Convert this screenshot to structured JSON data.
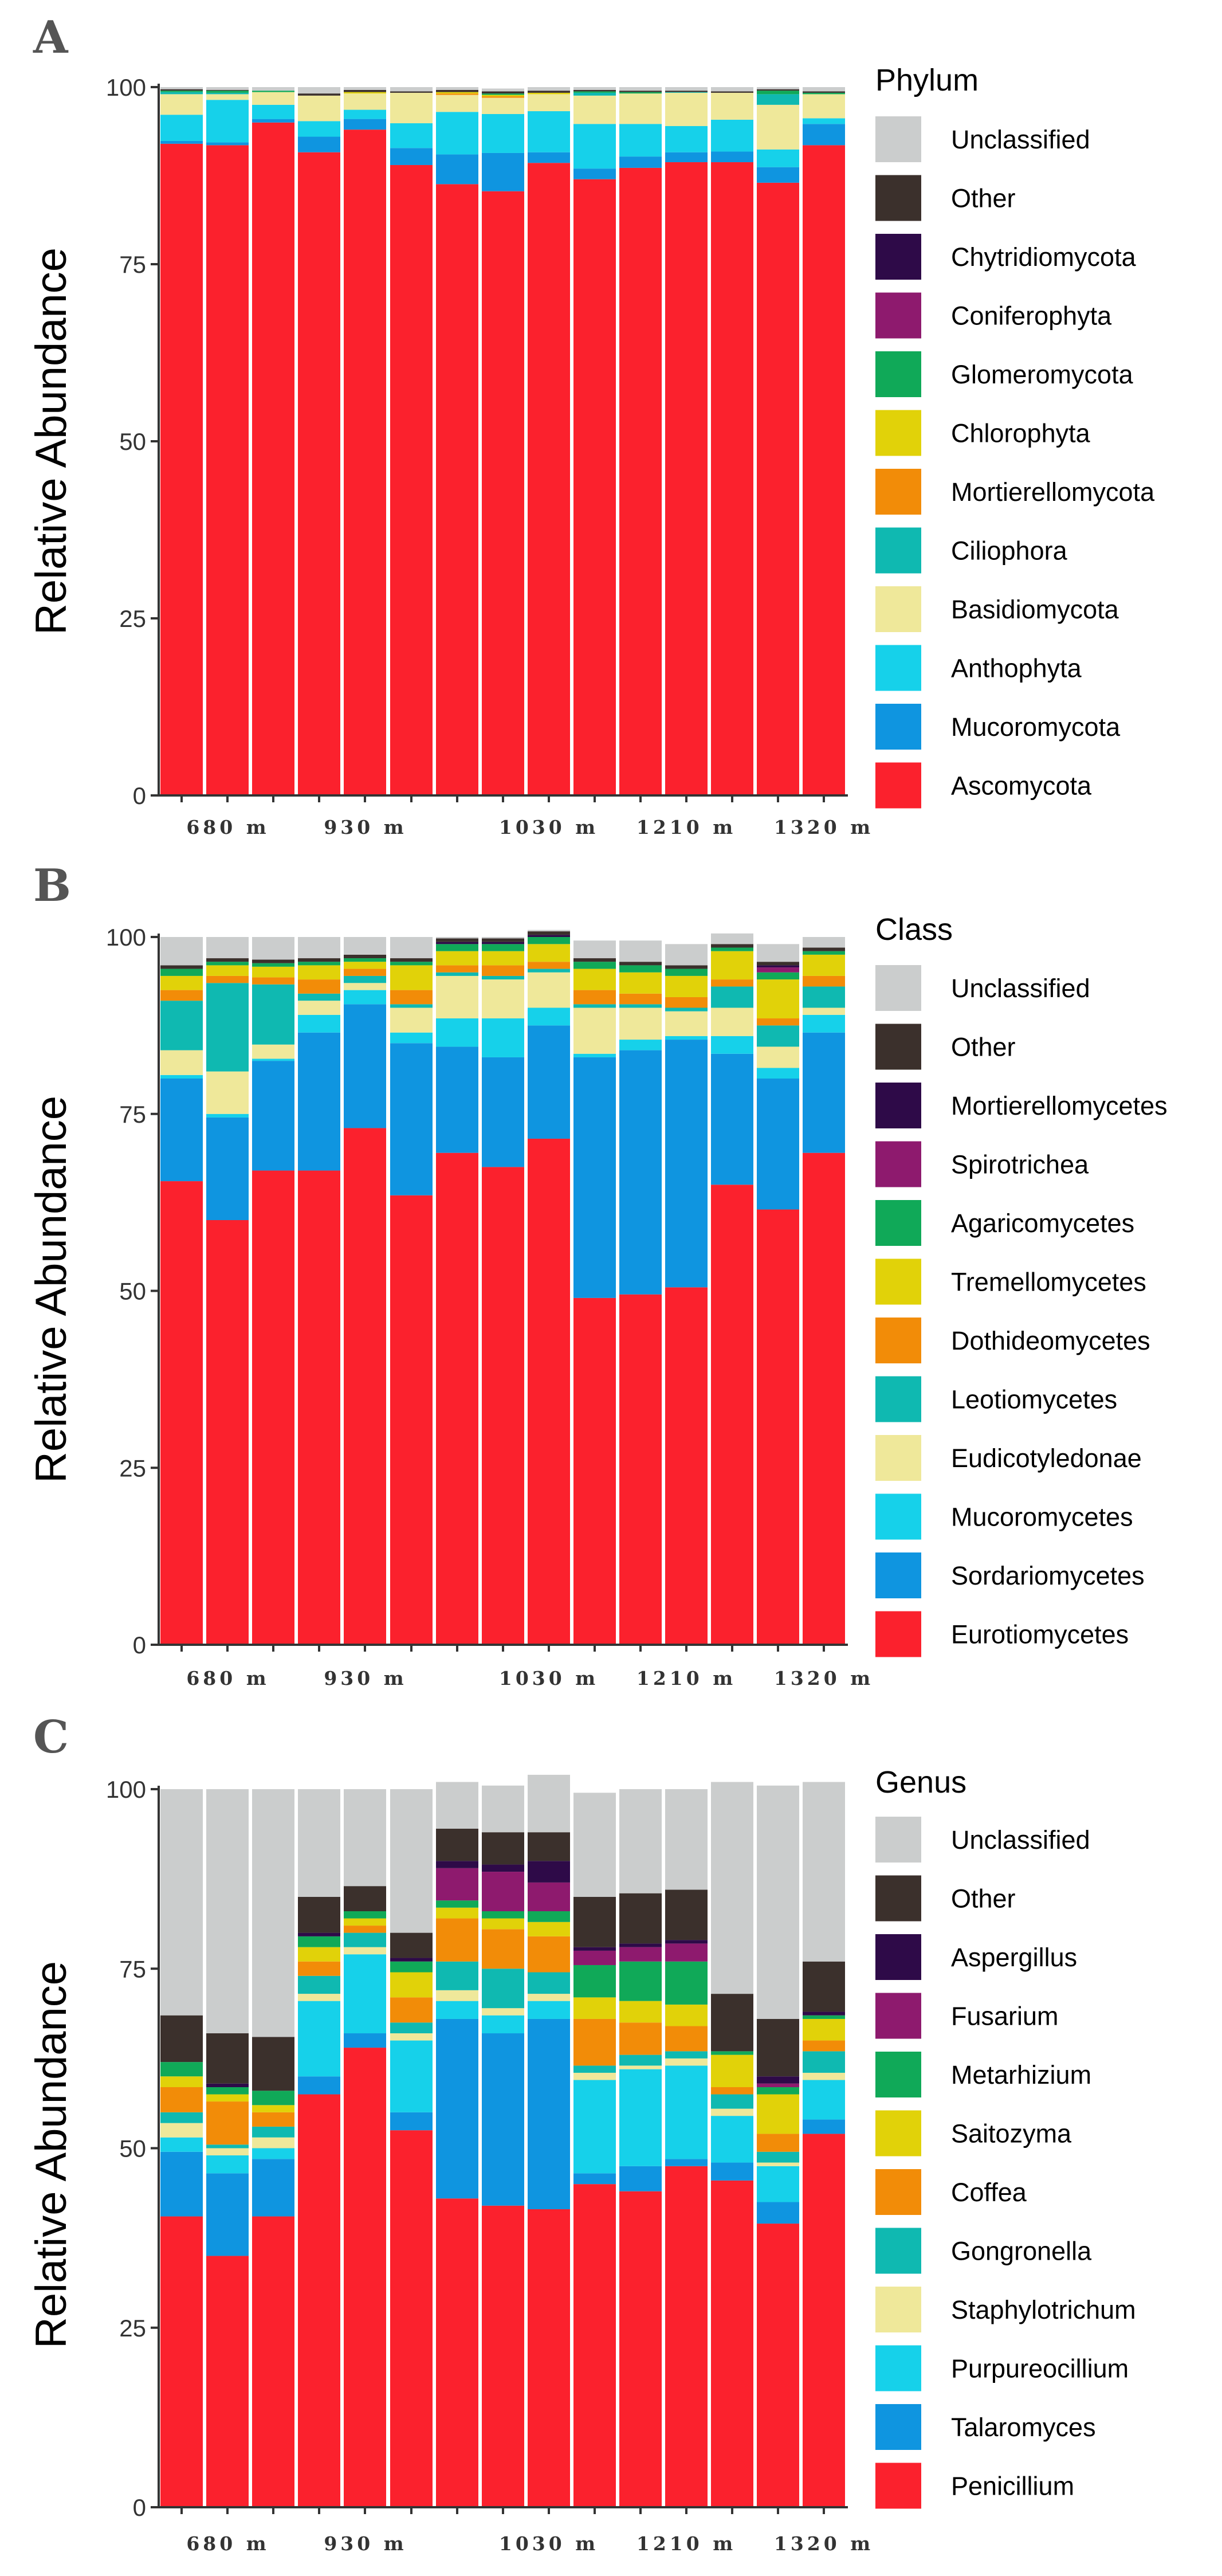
{
  "figure": {
    "colors": {
      "Unclassified": "#cbcdcd",
      "Other": "#3b302c",
      "dark_purple": "#2e0a48",
      "magenta": "#8e1a6e",
      "green": "#10a958",
      "yellow": "#e1d209",
      "orange": "#f28c08",
      "teal": "#0fb9b1",
      "pale_yellow": "#efe89a",
      "light_blue": "#16d1ea",
      "blue": "#0f95e0",
      "red": "#fb212d"
    }
  },
  "chart_data": [
    {
      "panel": "A",
      "type": "bar",
      "stacked": true,
      "ylabel": "Relative Abundance",
      "ylim": [
        0,
        100
      ],
      "yticks": [
        "0",
        "25",
        "50",
        "75",
        "100"
      ],
      "groups": [
        "680 m",
        "930 m",
        "1030 m",
        "1210 m",
        "1320 m"
      ],
      "legend_title": "Phylum",
      "legend_order": [
        "Unclassified",
        "Other",
        "Chytridiomycota",
        "Coniferophyta",
        "Glomeromycota",
        "Chlorophyta",
        "Mortierellomycota",
        "Ciliophora",
        "Basidiomycota",
        "Anthophyta",
        "Mucoromycota",
        "Ascomycota"
      ],
      "series": [
        {
          "name": "Ascomycota",
          "color": "#fb212d",
          "values": [
            92,
            91.8,
            95,
            90.8,
            94,
            89,
            86.3,
            85.3,
            89.3,
            87,
            88.6,
            89.4,
            89.4,
            86.5,
            91.8
          ]
        },
        {
          "name": "Mucoromycota",
          "color": "#0f95e0",
          "values": [
            0.4,
            0.4,
            0.5,
            2.2,
            1.5,
            2.4,
            4.2,
            5.4,
            1.5,
            1.5,
            1.6,
            1.4,
            1.5,
            2.2,
            3.0
          ]
        },
        {
          "name": "Anthophyta",
          "color": "#16d1ea",
          "values": [
            3.7,
            6.0,
            2.0,
            2.2,
            1.3,
            3.5,
            6.0,
            5.5,
            5.8,
            6.3,
            4.6,
            3.7,
            4.5,
            2.5,
            0.8
          ]
        },
        {
          "name": "Basidiomycota",
          "color": "#efe89a",
          "values": [
            2.9,
            0.8,
            1.8,
            3.6,
            2.3,
            4.3,
            2.4,
            2.3,
            2.4,
            4.0,
            4.3,
            4.7,
            3.8,
            6.3,
            3.4
          ]
        },
        {
          "name": "Ciliophora",
          "color": "#0fb9b1",
          "values": [
            0.3,
            0.2,
            0,
            0,
            0,
            0,
            0,
            0,
            0,
            0.4,
            0,
            0.1,
            0,
            1.5,
            0
          ]
        },
        {
          "name": "Mortierellomycota",
          "color": "#f28c08",
          "values": [
            0,
            0,
            0,
            0,
            0,
            0,
            0.2,
            0.2,
            0,
            0,
            0,
            0,
            0,
            0,
            0
          ]
        },
        {
          "name": "Chlorophyta",
          "color": "#e1d209",
          "values": [
            0,
            0,
            0,
            0,
            0.2,
            0,
            0.2,
            0.2,
            0.2,
            0,
            0,
            0,
            0,
            0,
            0
          ]
        },
        {
          "name": "Glomeromycota",
          "color": "#10a958",
          "values": [
            0.2,
            0.3,
            0.2,
            0,
            0,
            0,
            0,
            0.2,
            0,
            0.2,
            0.2,
            0,
            0,
            0.5,
            0.2
          ]
        },
        {
          "name": "Coniferophyta",
          "color": "#8e1a6e",
          "values": [
            0,
            0,
            0,
            0,
            0,
            0,
            0,
            0,
            0,
            0,
            0,
            0,
            0,
            0,
            0
          ]
        },
        {
          "name": "Chytridiomycota",
          "color": "#2e0a48",
          "values": [
            0,
            0,
            0,
            0,
            0,
            0,
            0,
            0,
            0,
            0,
            0,
            0,
            0,
            0,
            0
          ]
        },
        {
          "name": "Other",
          "color": "#3b302c",
          "values": [
            0.2,
            0.1,
            0,
            0.3,
            0.3,
            0.2,
            0.3,
            0.3,
            0.3,
            0.2,
            0.2,
            0.2,
            0.2,
            0.2,
            0.2
          ]
        },
        {
          "name": "Unclassified",
          "color": "#cbcdcd",
          "values": [
            0.3,
            0.4,
            0.5,
            0.9,
            0.4,
            0.6,
            0.4,
            0.4,
            0.5,
            0.4,
            0.5,
            0.5,
            0.6,
            0.3,
            0.6
          ]
        }
      ]
    },
    {
      "panel": "B",
      "type": "bar",
      "stacked": true,
      "ylabel": "Relative Abundance",
      "ylim": [
        0,
        100
      ],
      "yticks": [
        "0",
        "25",
        "50",
        "75",
        "100"
      ],
      "groups": [
        "680 m",
        "930 m",
        "1030 m",
        "1210 m",
        "1320 m"
      ],
      "legend_title": "Class",
      "legend_order": [
        "Unclassified",
        "Other",
        "Mortierellomycetes",
        "Spirotrichea",
        "Agaricomycetes",
        "Tremellomycetes",
        "Dothideomycetes",
        "Leotiomycetes",
        "Eudicotyledonae",
        "Mucoromycetes",
        "Sordariomycetes",
        "Eurotiomycetes"
      ],
      "series": [
        {
          "name": "Eurotiomycetes",
          "color": "#fb212d",
          "values": [
            65.5,
            60,
            67,
            67,
            73,
            63.5,
            69.5,
            67.5,
            71.5,
            49,
            49.5,
            50.5,
            65,
            61.5,
            69.5
          ]
        },
        {
          "name": "Sordariomycetes",
          "color": "#0f95e0",
          "values": [
            14.5,
            14.5,
            15.5,
            19.5,
            17.5,
            21.5,
            15,
            15.5,
            16,
            34,
            34.5,
            35,
            18.5,
            18.5,
            17
          ]
        },
        {
          "name": "Mucoromycetes",
          "color": "#16d1ea",
          "values": [
            0.5,
            0.5,
            0.3,
            2.5,
            2,
            1.5,
            4,
            5.5,
            2.5,
            0.5,
            1.5,
            0.5,
            2.5,
            1.5,
            2.5
          ]
        },
        {
          "name": "Eudicotyledonae",
          "color": "#efe89a",
          "values": [
            3.5,
            6,
            2,
            2,
            1,
            3.5,
            6,
            5.5,
            5,
            6.5,
            4.5,
            3.5,
            4,
            3,
            1
          ]
        },
        {
          "name": "Leotiomycetes",
          "color": "#0fb9b1",
          "values": [
            7,
            12.5,
            8.5,
            1,
            1,
            0.5,
            0.5,
            0.5,
            0.5,
            0.5,
            0.5,
            0.5,
            3,
            3,
            3
          ]
        },
        {
          "name": "Dothideomycetes",
          "color": "#f28c08",
          "values": [
            1.5,
            1,
            1,
            2,
            1,
            2,
            1,
            1.5,
            1,
            2,
            1.5,
            1.5,
            1,
            1,
            1.5
          ]
        },
        {
          "name": "Tremellomycetes",
          "color": "#e1d209",
          "values": [
            2,
            1.5,
            1.5,
            2,
            1,
            3.5,
            2,
            2,
            2.5,
            3,
            3,
            3,
            4,
            5.5,
            3
          ]
        },
        {
          "name": "Agaricomycetes",
          "color": "#10a958",
          "values": [
            1,
            0.5,
            0.5,
            0.5,
            0.5,
            0.5,
            1,
            1,
            1,
            1,
            1,
            1,
            0.5,
            1,
            0.5
          ]
        },
        {
          "name": "Spirotrichea",
          "color": "#8e1a6e",
          "values": [
            0,
            0,
            0,
            0,
            0,
            0,
            0,
            0,
            0,
            0,
            0,
            0,
            0,
            0.7,
            0
          ]
        },
        {
          "name": "Mortierellomycetes",
          "color": "#2e0a48",
          "values": [
            0,
            0,
            0,
            0,
            0,
            0,
            0.3,
            0.3,
            0.3,
            0,
            0,
            0,
            0,
            0.3,
            0
          ]
        },
        {
          "name": "Other",
          "color": "#3b302c",
          "values": [
            0.5,
            0.5,
            0.5,
            0.5,
            0.5,
            0.5,
            0.5,
            0.5,
            0.5,
            0.5,
            0.5,
            0.5,
            0.5,
            0.5,
            0.5
          ]
        },
        {
          "name": "Unclassified",
          "color": "#cbcdcd",
          "values": [
            4,
            3,
            3.2,
            3,
            2.5,
            3,
            0.2,
            0.2,
            0.2,
            2.5,
            3,
            3,
            1.5,
            2.5,
            1.5
          ]
        }
      ]
    },
    {
      "panel": "C",
      "type": "bar",
      "stacked": true,
      "ylabel": "Relative Abundance",
      "ylim": [
        0,
        100
      ],
      "yticks": [
        "0",
        "25",
        "50",
        "75",
        "100"
      ],
      "groups": [
        "680 m",
        "930 m",
        "1030 m",
        "1210 m",
        "1320 m"
      ],
      "legend_title": "Genus",
      "legend_order": [
        "Unclassified",
        "Other",
        "Aspergillus",
        "Fusarium",
        "Metarhizium",
        "Saitozyma",
        "Coffea",
        "Gongronella",
        "Staphylotrichum",
        "Purpureocillium",
        "Talaromyces",
        "Penicillium"
      ],
      "series": [
        {
          "name": "Penicillium",
          "color": "#fb212d",
          "values": [
            40.5,
            35,
            40.5,
            57.5,
            64,
            52.5,
            43,
            42,
            41.5,
            45,
            44,
            47.5,
            45.5,
            39.5,
            52
          ]
        },
        {
          "name": "Talaromyces",
          "color": "#0f95e0",
          "values": [
            9,
            11.5,
            8,
            2.5,
            2,
            2.5,
            25,
            24,
            26.5,
            1.5,
            3.5,
            1,
            2.5,
            3,
            2
          ]
        },
        {
          "name": "Purpureocillium",
          "color": "#16d1ea",
          "values": [
            2,
            2.5,
            1.5,
            10.5,
            11,
            10,
            2.5,
            2.5,
            2.5,
            13,
            13.5,
            13,
            6.5,
            5,
            5.5
          ]
        },
        {
          "name": "Staphylotrichum",
          "color": "#efe89a",
          "values": [
            2,
            1,
            1.5,
            1,
            1,
            1,
            1.5,
            1,
            1,
            1,
            0.5,
            1,
            1,
            0.5,
            1
          ]
        },
        {
          "name": "Gongronella",
          "color": "#0fb9b1",
          "values": [
            1.5,
            0.5,
            1.5,
            2.5,
            2,
            1.5,
            4,
            5.5,
            3,
            1,
            1.5,
            1,
            2,
            1.5,
            3
          ]
        },
        {
          "name": "Coffea",
          "color": "#f28c08",
          "values": [
            3.5,
            6,
            2,
            2,
            1,
            3.5,
            6,
            5.5,
            5,
            6.5,
            4.5,
            3.5,
            1,
            2.5,
            1.5
          ]
        },
        {
          "name": "Saitozyma",
          "color": "#e1d209",
          "values": [
            1.5,
            1,
            1,
            2,
            1,
            3.5,
            1.5,
            1.5,
            2,
            3,
            3,
            3,
            4.5,
            5.5,
            3
          ]
        },
        {
          "name": "Metarhizium",
          "color": "#10a958",
          "values": [
            2,
            1,
            2,
            1.5,
            1,
            1.5,
            1,
            1,
            1.5,
            4.5,
            5.5,
            6,
            0.5,
            1,
            0.5
          ]
        },
        {
          "name": "Fusarium",
          "color": "#8e1a6e",
          "values": [
            0,
            0,
            0,
            0,
            0,
            0,
            4.5,
            5.5,
            4,
            2,
            2,
            2.5,
            0,
            0.5,
            0
          ]
        },
        {
          "name": "Aspergillus",
          "color": "#2e0a48",
          "values": [
            0,
            0.5,
            0,
            0.5,
            0,
            0.5,
            1,
            1,
            3,
            0.5,
            0.5,
            0.5,
            0,
            1,
            0.5
          ]
        },
        {
          "name": "Other",
          "color": "#3b302c",
          "values": [
            6.5,
            7,
            7.5,
            5,
            3.5,
            3.5,
            4.5,
            4.5,
            4,
            7,
            7,
            7,
            8,
            8,
            7
          ]
        },
        {
          "name": "Unclassified",
          "color": "#cbcdcd",
          "values": [
            31.5,
            34,
            34.5,
            15,
            13.5,
            20,
            6.5,
            6.5,
            8,
            14.5,
            14.5,
            14,
            29.5,
            32.5,
            25
          ]
        }
      ]
    }
  ]
}
